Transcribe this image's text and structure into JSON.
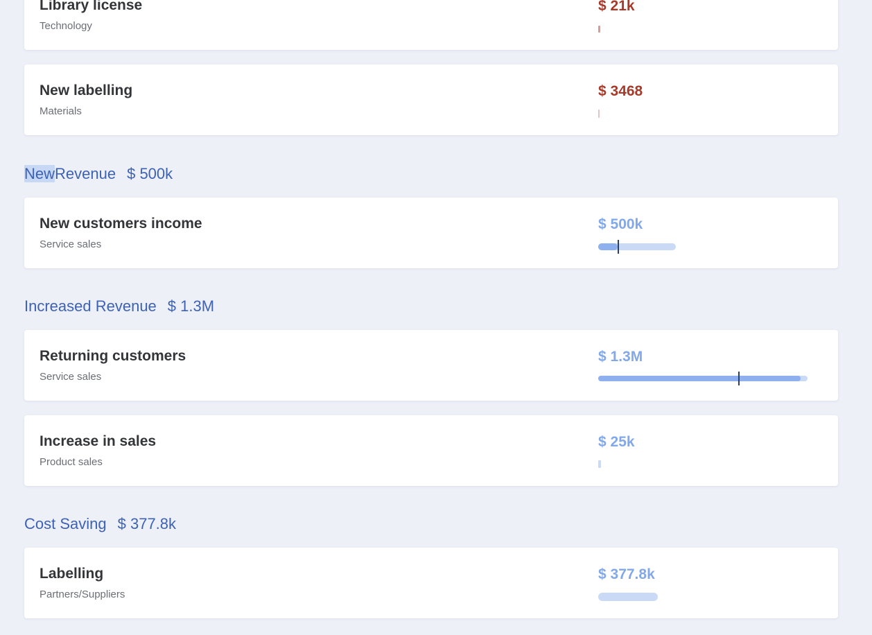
{
  "colors": {
    "background": "#eef0f8",
    "card": "#ffffff",
    "cost_amount": "#a63a2a",
    "gain_amount": "#82a8e8",
    "section_header": "#3d62b4",
    "bar_track": "#c9d9f6",
    "bar_fill": "#8eb0ee",
    "bar_marker": "#2a3f66",
    "selection_highlight": "#c7d8f5"
  },
  "items": {
    "library_license": {
      "title": "Library license",
      "category": "Technology",
      "amount": "$ 21k"
    },
    "new_labelling": {
      "title": "New labelling",
      "category": "Materials",
      "amount": "$ 3468"
    },
    "new_customers_income": {
      "title": "New customers income",
      "category": "Service sales",
      "amount": "$ 500k",
      "bar_level": 0.27
    },
    "returning_customers": {
      "title": "Returning customers",
      "category": "Service sales",
      "amount": "$ 1.3M",
      "bar_level": 0.68
    },
    "increase_in_sales": {
      "title": "Increase in sales",
      "category": "Product sales",
      "amount": "$ 25k"
    },
    "labelling": {
      "title": "Labelling",
      "category": "Partners/Suppliers",
      "amount": "$ 377.8k"
    }
  },
  "sections": {
    "new_revenue": {
      "label_highlighted": "New",
      "label_rest": "Revenue",
      "amount": "$ 500k"
    },
    "increased_revenue": {
      "label": "Increased Revenue",
      "amount": "$ 1.3M"
    },
    "cost_saving": {
      "label": "Cost Saving",
      "amount": "$ 377.8k"
    }
  }
}
